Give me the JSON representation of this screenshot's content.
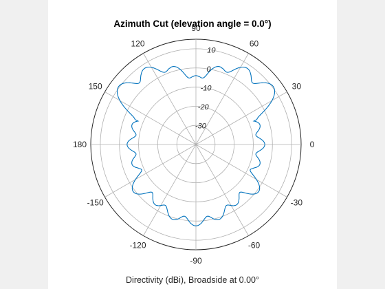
{
  "window": {
    "background": "#f0f0f0",
    "plot_background": "#ffffff"
  },
  "chart_data": {
    "type": "polar-line",
    "title": "Azimuth Cut (elevation angle = 0.0°)",
    "subtitle": "Directivity (dBi), Broadside at 0.00°",
    "theta_ticks": [
      0,
      30,
      60,
      90,
      120,
      150,
      180,
      -150,
      -120,
      -90,
      -60,
      -30
    ],
    "r_ticks": [
      -30,
      -20,
      -10,
      0,
      10
    ],
    "r_range": [
      -40,
      15
    ],
    "grid": true,
    "series": [
      {
        "color": "#0072bd",
        "lobes": [
          {
            "theta_deg": 0,
            "peak_dbi": -4
          },
          {
            "theta_deg": 17,
            "peak_dbi": -5
          },
          {
            "theta_deg": 37,
            "peak_dbi": 10.5
          },
          {
            "theta_deg": 56,
            "peak_dbi": 8
          },
          {
            "theta_deg": 73,
            "peak_dbi": 2.5
          },
          {
            "theta_deg": 90,
            "peak_dbi": -4
          },
          {
            "theta_deg": 107,
            "peak_dbi": 2.5
          },
          {
            "theta_deg": 124,
            "peak_dbi": 8
          },
          {
            "theta_deg": 143,
            "peak_dbi": 10.5
          },
          {
            "theta_deg": 163,
            "peak_dbi": -5
          },
          {
            "theta_deg": 180,
            "peak_dbi": -4
          },
          {
            "theta_deg": -163,
            "peak_dbi": -5
          },
          {
            "theta_deg": -143,
            "peak_dbi": 1
          },
          {
            "theta_deg": -124,
            "peak_dbi": -2
          },
          {
            "theta_deg": -107,
            "peak_dbi": 1
          },
          {
            "theta_deg": -90,
            "peak_dbi": 2.5
          },
          {
            "theta_deg": -73,
            "peak_dbi": 1
          },
          {
            "theta_deg": -56,
            "peak_dbi": -2
          },
          {
            "theta_deg": -37,
            "peak_dbi": 1
          },
          {
            "theta_deg": -17,
            "peak_dbi": -5
          }
        ]
      }
    ]
  }
}
